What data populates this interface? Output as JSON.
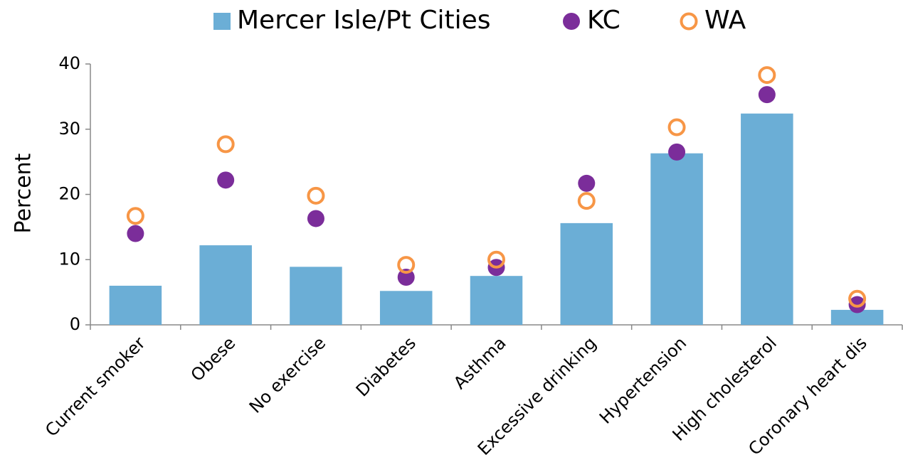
{
  "chart_data": {
    "type": "bar",
    "categories": [
      "Current smoker",
      "Obese",
      "No exercise",
      "Diabetes",
      "Asthma",
      "Excessive drinking",
      "Hypertension",
      "High cholesterol",
      "Coronary heart dis"
    ],
    "series": [
      {
        "name": "Mercer Isle/Pt Cities",
        "type": "bar",
        "color": "#6BAED6",
        "values": [
          6.0,
          12.2,
          8.9,
          5.2,
          7.5,
          15.6,
          26.3,
          32.4,
          2.3
        ]
      },
      {
        "name": "KC",
        "type": "dot",
        "color": "#7B2D9A",
        "values": [
          14.0,
          22.2,
          16.3,
          7.3,
          8.8,
          21.7,
          26.5,
          35.3,
          3.1
        ]
      },
      {
        "name": "WA",
        "type": "ring",
        "color": "#F79646",
        "values": [
          16.7,
          27.7,
          19.8,
          9.2,
          10.0,
          19.0,
          30.3,
          38.3,
          4.0
        ]
      }
    ],
    "y_label": "Percent",
    "ylim": [
      0,
      40
    ],
    "yticks": [
      0,
      10,
      20,
      30,
      40
    ],
    "legend": "top",
    "grid": false
  }
}
